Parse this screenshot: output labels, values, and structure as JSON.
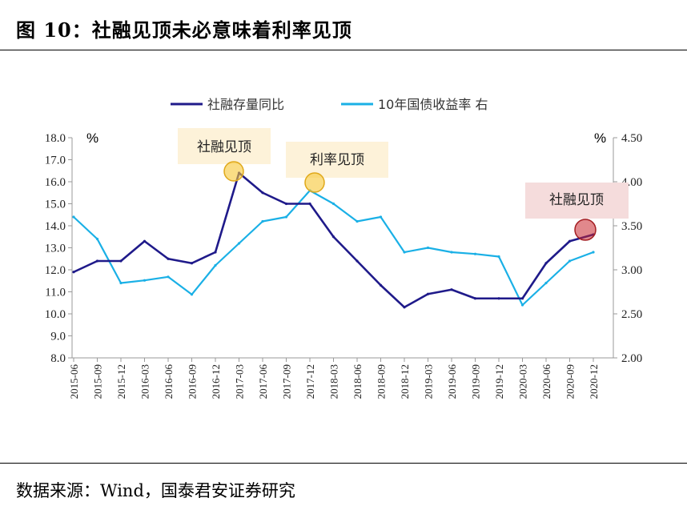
{
  "figure": {
    "title": "图 10：社融见顶未必意味着利率见顶",
    "source": "数据来源：Wind，国泰君安证券研究"
  },
  "colors": {
    "series1": "#1f1a8a",
    "series2": "#1ab0e6",
    "annotation_yellow_bg": "#fdf2d9",
    "annotation_red_bg": "#f5dcdc",
    "marker_yellow": "#f7c633",
    "marker_red": "#c9272e"
  },
  "chart_data": {
    "type": "line",
    "title": "",
    "left_axis": {
      "unit": "%",
      "ylim": [
        8.0,
        18.0
      ],
      "ticks": [
        "8.0",
        "9.0",
        "10.0",
        "11.0",
        "12.0",
        "13.0",
        "14.0",
        "15.0",
        "16.0",
        "17.0",
        "18.0"
      ]
    },
    "right_axis": {
      "unit": "%",
      "ylim": [
        2.0,
        4.5
      ],
      "ticks": [
        "2.00",
        "2.50",
        "3.00",
        "3.50",
        "4.00",
        "4.50"
      ]
    },
    "categories": [
      "2015-06",
      "2015-09",
      "2015-12",
      "2016-03",
      "2016-06",
      "2016-09",
      "2016-12",
      "2017-03",
      "2017-06",
      "2017-09",
      "2017-12",
      "2018-03",
      "2018-06",
      "2018-09",
      "2018-12",
      "2019-03",
      "2019-06",
      "2019-09",
      "2019-12",
      "2020-03",
      "2020-06",
      "2020-09",
      "2020-12"
    ],
    "series": [
      {
        "name": "社融存量同比",
        "axis": "left",
        "values": [
          11.9,
          12.4,
          12.4,
          13.3,
          12.5,
          12.3,
          12.8,
          16.4,
          15.5,
          15.0,
          15.0,
          13.5,
          12.4,
          11.3,
          10.3,
          10.9,
          11.1,
          10.7,
          10.7,
          10.7,
          12.3,
          13.3,
          13.6
        ]
      },
      {
        "name": "10年国债收益率 右",
        "axis": "right",
        "values": [
          3.6,
          3.35,
          2.85,
          2.88,
          2.92,
          2.72,
          3.05,
          3.3,
          3.55,
          3.6,
          3.9,
          3.75,
          3.55,
          3.6,
          3.2,
          3.25,
          3.2,
          3.18,
          3.15,
          2.6,
          2.85,
          3.1,
          3.2
        ]
      }
    ],
    "legend": {
      "position": "top",
      "entries": [
        "社融存量同比",
        "10年国债收益率 右"
      ]
    },
    "annotations": [
      {
        "text": "社融见顶",
        "style": "yellow"
      },
      {
        "text": "利率见顶",
        "style": "yellow"
      },
      {
        "text": "社融见顶",
        "style": "red"
      }
    ]
  }
}
